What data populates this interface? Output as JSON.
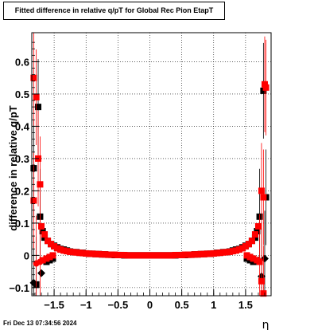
{
  "title": "Fitted difference in relative q/pT for Global Rec Pion EtapT",
  "timestamp": "Fri Dec 13 07:34:56 2024",
  "chart_data": {
    "type": "scatter",
    "title": "Fitted difference in relative q/pT for Global Rec Pion EtapT",
    "xlabel": "η",
    "ylabel": "difference in relative q/pT",
    "xlim": [
      -1.85,
      1.9
    ],
    "ylim": [
      -0.125,
      0.69
    ],
    "x_ticks": [
      -1.5,
      -1,
      -0.5,
      0,
      0.5,
      1,
      1.5
    ],
    "x_tick_labels": [
      "−1.5",
      "−1",
      "−0.5",
      "0",
      "0.5",
      "1",
      "1.5"
    ],
    "y_ticks": [
      -0.1,
      0,
      0.1,
      0.2,
      0.3,
      0.4,
      0.5,
      0.6
    ],
    "y_tick_labels": [
      "−0.1",
      "0",
      "0.1",
      "0.2",
      "0.3",
      "0.4",
      "0.5",
      "0.6"
    ],
    "grid": true,
    "series": [
      {
        "color": "#000000",
        "marker": "square-and-diamond",
        "points": [
          [
            -1.82,
            0.27
          ],
          [
            -1.82,
            -0.085
          ],
          [
            -1.78,
            -0.09
          ],
          [
            -1.75,
            0.46
          ],
          [
            -1.72,
            0.12
          ],
          [
            -1.7,
            -0.055
          ],
          [
            -1.68,
            0.075
          ],
          [
            -1.65,
            0.055
          ],
          [
            -1.62,
            -0.02
          ],
          [
            -1.6,
            0.045
          ],
          [
            -1.57,
            -0.015
          ],
          [
            -1.55,
            0.035
          ],
          [
            -1.52,
            -0.01
          ],
          [
            -1.5,
            0.03
          ],
          [
            -1.45,
            0.025
          ],
          [
            -1.4,
            0.02
          ],
          [
            -1.35,
            0.018
          ],
          [
            -1.3,
            0.015
          ],
          [
            -1.25,
            0.012
          ],
          [
            -1.2,
            0.01
          ],
          [
            -1.15,
            0.01
          ],
          [
            -1.1,
            0.008
          ],
          [
            -1.05,
            0.008
          ],
          [
            -1.0,
            0.006
          ],
          [
            -0.95,
            0.005
          ],
          [
            -0.9,
            0.005
          ],
          [
            -0.85,
            0.004
          ],
          [
            -0.8,
            0.004
          ],
          [
            -0.75,
            0.003
          ],
          [
            -0.7,
            0.003
          ],
          [
            -0.65,
            0.002
          ],
          [
            -0.6,
            0.002
          ],
          [
            -0.55,
            0.001
          ],
          [
            -0.5,
            0.001
          ],
          [
            -0.45,
            0.001
          ],
          [
            -0.4,
            0.0
          ],
          [
            -0.35,
            0.0
          ],
          [
            -0.3,
            0.0
          ],
          [
            -0.25,
            0.0
          ],
          [
            -0.2,
            0.0
          ],
          [
            -0.15,
            0.0
          ],
          [
            -0.1,
            0.0
          ],
          [
            -0.05,
            0.0
          ],
          [
            0.0,
            0.0
          ],
          [
            0.05,
            0.0
          ],
          [
            0.1,
            0.0
          ],
          [
            0.15,
            0.0
          ],
          [
            0.2,
            0.0
          ],
          [
            0.25,
            0.0
          ],
          [
            0.3,
            0.0
          ],
          [
            0.35,
            0.0
          ],
          [
            0.4,
            0.0
          ],
          [
            0.45,
            0.001
          ],
          [
            0.5,
            0.001
          ],
          [
            0.55,
            0.001
          ],
          [
            0.6,
            0.002
          ],
          [
            0.65,
            0.002
          ],
          [
            0.7,
            0.003
          ],
          [
            0.75,
            0.003
          ],
          [
            0.8,
            0.004
          ],
          [
            0.85,
            0.004
          ],
          [
            0.9,
            0.005
          ],
          [
            0.95,
            0.005
          ],
          [
            1.0,
            0.006
          ],
          [
            1.05,
            0.008
          ],
          [
            1.1,
            0.008
          ],
          [
            1.15,
            0.01
          ],
          [
            1.2,
            0.01
          ],
          [
            1.25,
            0.012
          ],
          [
            1.3,
            0.015
          ],
          [
            1.35,
            0.018
          ],
          [
            1.4,
            0.02
          ],
          [
            1.45,
            0.025
          ],
          [
            1.5,
            0.03
          ],
          [
            1.52,
            -0.01
          ],
          [
            1.55,
            0.035
          ],
          [
            1.57,
            -0.015
          ],
          [
            1.6,
            0.045
          ],
          [
            1.62,
            -0.02
          ],
          [
            1.65,
            0.055
          ],
          [
            1.68,
            0.075
          ],
          [
            1.7,
            -0.015
          ],
          [
            1.72,
            0.12
          ],
          [
            1.75,
            -0.065
          ],
          [
            1.78,
            0.51
          ],
          [
            1.8,
            -0.01
          ],
          [
            1.82,
            0.18
          ]
        ]
      },
      {
        "color": "#ff0000",
        "marker": "square-and-circle",
        "points": [
          [
            -1.82,
            0.55
          ],
          [
            -1.82,
            0.17
          ],
          [
            -1.78,
            0.49
          ],
          [
            -1.78,
            -0.025
          ],
          [
            -1.75,
            0.3
          ],
          [
            -1.72,
            -0.02
          ],
          [
            -1.72,
            0.22
          ],
          [
            -1.7,
            0.09
          ],
          [
            -1.68,
            -0.015
          ],
          [
            -1.65,
            0.065
          ],
          [
            -1.62,
            -0.01
          ],
          [
            -1.6,
            0.045
          ],
          [
            -1.57,
            -0.005
          ],
          [
            -1.55,
            0.035
          ],
          [
            -1.52,
            0.0
          ],
          [
            -1.5,
            0.028
          ],
          [
            -1.45,
            0.022
          ],
          [
            -1.4,
            0.018
          ],
          [
            -1.35,
            0.015
          ],
          [
            -1.3,
            0.013
          ],
          [
            -1.25,
            0.011
          ],
          [
            -1.2,
            0.01
          ],
          [
            -1.15,
            0.009
          ],
          [
            -1.1,
            0.008
          ],
          [
            -1.05,
            0.007
          ],
          [
            -1.0,
            0.006
          ],
          [
            -0.95,
            0.005
          ],
          [
            -0.9,
            0.005
          ],
          [
            -0.85,
            0.004
          ],
          [
            -0.8,
            0.004
          ],
          [
            -0.75,
            0.003
          ],
          [
            -0.7,
            0.003
          ],
          [
            -0.65,
            0.002
          ],
          [
            -0.6,
            0.002
          ],
          [
            -0.55,
            0.002
          ],
          [
            -0.5,
            0.001
          ],
          [
            -0.45,
            0.001
          ],
          [
            -0.4,
            0.001
          ],
          [
            -0.35,
            0.0
          ],
          [
            -0.3,
            0.0
          ],
          [
            -0.25,
            0.0
          ],
          [
            -0.2,
            0.0
          ],
          [
            -0.15,
            0.0
          ],
          [
            -0.1,
            0.0
          ],
          [
            -0.05,
            0.0
          ],
          [
            0.0,
            0.0
          ],
          [
            0.05,
            0.0
          ],
          [
            0.1,
            0.0
          ],
          [
            0.15,
            0.0
          ],
          [
            0.2,
            0.0
          ],
          [
            0.25,
            0.0
          ],
          [
            0.3,
            0.0
          ],
          [
            0.35,
            0.0
          ],
          [
            0.4,
            0.001
          ],
          [
            0.45,
            0.001
          ],
          [
            0.5,
            0.001
          ],
          [
            0.55,
            0.002
          ],
          [
            0.6,
            0.002
          ],
          [
            0.65,
            0.002
          ],
          [
            0.7,
            0.003
          ],
          [
            0.75,
            0.003
          ],
          [
            0.8,
            0.004
          ],
          [
            0.85,
            0.004
          ],
          [
            0.9,
            0.005
          ],
          [
            0.95,
            0.005
          ],
          [
            1.0,
            0.006
          ],
          [
            1.05,
            0.007
          ],
          [
            1.1,
            0.008
          ],
          [
            1.15,
            0.009
          ],
          [
            1.2,
            0.01
          ],
          [
            1.25,
            0.011
          ],
          [
            1.3,
            0.013
          ],
          [
            1.35,
            0.015
          ],
          [
            1.4,
            0.018
          ],
          [
            1.45,
            0.022
          ],
          [
            1.5,
            0.028
          ],
          [
            1.52,
            0.0
          ],
          [
            1.55,
            0.035
          ],
          [
            1.57,
            -0.005
          ],
          [
            1.6,
            0.045
          ],
          [
            1.62,
            -0.01
          ],
          [
            1.65,
            0.065
          ],
          [
            1.68,
            -0.015
          ],
          [
            1.7,
            0.09
          ],
          [
            1.72,
            -0.02
          ],
          [
            1.75,
            0.2
          ],
          [
            1.75,
            -0.08
          ],
          [
            1.78,
            0.18
          ],
          [
            1.78,
            -0.118
          ],
          [
            1.8,
            0.53
          ],
          [
            1.82,
            0.52
          ]
        ]
      }
    ]
  }
}
